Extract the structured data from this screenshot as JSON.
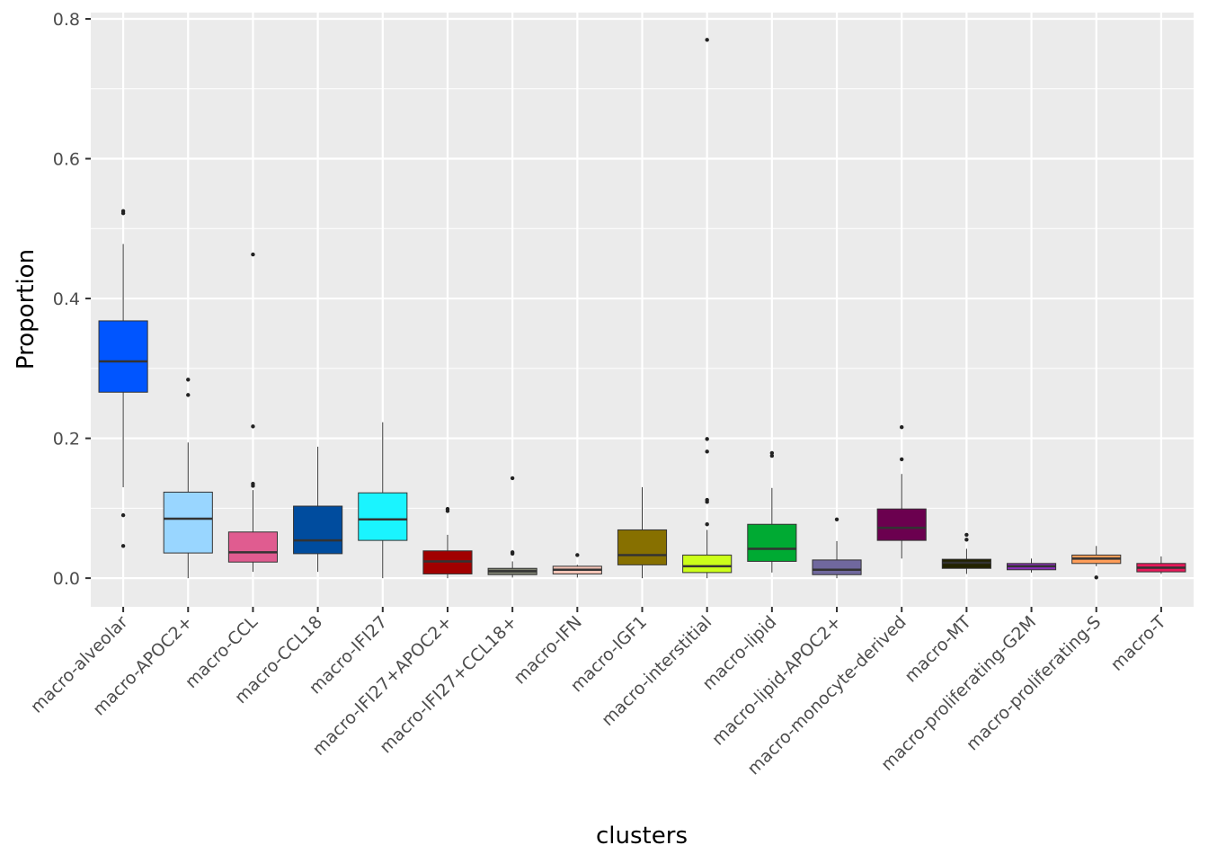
{
  "chart_data": {
    "type": "box",
    "x_label": "clusters",
    "y_label": "Proportion",
    "categories": [
      "macro-alveolar",
      "macro-APOC2+",
      "macro-CCL",
      "macro-CCL18",
      "macro-IFI27",
      "macro-IFI27+APOC2+",
      "macro-IFI27+CCL18+",
      "macro-IFN",
      "macro-IGF1",
      "macro-interstitial",
      "macro-lipid",
      "macro-lipid-APOC2+",
      "macro-monocyte-derived",
      "macro-MT",
      "macro-proliferating-G2M",
      "macro-proliferating-S",
      "macro-T"
    ],
    "boxes": [
      {
        "whislo": 0.13,
        "q1": 0.266,
        "med": 0.31,
        "q3": 0.368,
        "whishi": 0.478,
        "fliers": [
          0.525,
          0.522,
          0.09,
          0.046
        ],
        "color": "#0055ff"
      },
      {
        "whislo": 0.0,
        "q1": 0.036,
        "med": 0.085,
        "q3": 0.123,
        "whishi": 0.194,
        "fliers": [
          0.284,
          0.262
        ],
        "color": "#99d6ff"
      },
      {
        "whislo": 0.009,
        "q1": 0.023,
        "med": 0.037,
        "q3": 0.066,
        "whishi": 0.126,
        "fliers": [
          0.463,
          0.217,
          0.135,
          0.132
        ],
        "color": "#e05c90"
      },
      {
        "whislo": 0.009,
        "q1": 0.035,
        "med": 0.054,
        "q3": 0.103,
        "whishi": 0.188,
        "fliers": [],
        "color": "#004c9e"
      },
      {
        "whislo": 0.0,
        "q1": 0.054,
        "med": 0.084,
        "q3": 0.122,
        "whishi": 0.223,
        "fliers": [],
        "color": "#1af4ff"
      },
      {
        "whislo": 0.0,
        "q1": 0.006,
        "med": 0.024,
        "q3": 0.039,
        "whishi": 0.062,
        "fliers": [
          0.099,
          0.096
        ],
        "color": "#a10000"
      },
      {
        "whislo": 0.001,
        "q1": 0.005,
        "med": 0.01,
        "q3": 0.014,
        "whishi": 0.024,
        "fliers": [
          0.143,
          0.037,
          0.035
        ],
        "color": "#7d8070"
      },
      {
        "whislo": 0.001,
        "q1": 0.006,
        "med": 0.012,
        "q3": 0.017,
        "whishi": 0.019,
        "fliers": [
          0.033
        ],
        "color": "#f7c6b8"
      },
      {
        "whislo": 0.0,
        "q1": 0.019,
        "med": 0.033,
        "q3": 0.069,
        "whishi": 0.13,
        "fliers": [],
        "color": "#877000"
      },
      {
        "whislo": 0.0,
        "q1": 0.008,
        "med": 0.017,
        "q3": 0.033,
        "whishi": 0.069,
        "fliers": [
          0.77,
          0.199,
          0.181,
          0.112,
          0.109,
          0.077
        ],
        "color": "#ccff1a"
      },
      {
        "whislo": 0.008,
        "q1": 0.024,
        "med": 0.042,
        "q3": 0.077,
        "whishi": 0.129,
        "fliers": [
          0.179,
          0.175
        ],
        "color": "#00aa33"
      },
      {
        "whislo": 0.0,
        "q1": 0.005,
        "med": 0.012,
        "q3": 0.026,
        "whishi": 0.053,
        "fliers": [
          0.084
        ],
        "color": "#70689e"
      },
      {
        "whislo": 0.028,
        "q1": 0.054,
        "med": 0.072,
        "q3": 0.099,
        "whishi": 0.149,
        "fliers": [
          0.216,
          0.17
        ],
        "color": "#6b004f"
      },
      {
        "whislo": 0.006,
        "q1": 0.014,
        "med": 0.022,
        "q3": 0.027,
        "whishi": 0.042,
        "fliers": [
          0.062,
          0.055
        ],
        "color": "#222200"
      },
      {
        "whislo": 0.008,
        "q1": 0.012,
        "med": 0.017,
        "q3": 0.021,
        "whishi": 0.028,
        "fliers": [],
        "color": "#8a2eb8"
      },
      {
        "whislo": 0.017,
        "q1": 0.021,
        "med": 0.028,
        "q3": 0.033,
        "whishi": 0.046,
        "fliers": [
          0.001
        ],
        "color": "#ff9e59"
      },
      {
        "whislo": 0.006,
        "q1": 0.009,
        "med": 0.015,
        "q3": 0.021,
        "whishi": 0.031,
        "fliers": [],
        "color": "#e6195a"
      }
    ],
    "ylim": [
      -0.041,
      0.809
    ],
    "yticks": [
      {
        "value": 0,
        "label": "0.0"
      },
      0.2,
      0.4,
      0.6,
      0.8
    ],
    "y_minor_ticks": [
      0.1,
      0.3,
      0.5,
      0.7
    ],
    "grid": true
  }
}
